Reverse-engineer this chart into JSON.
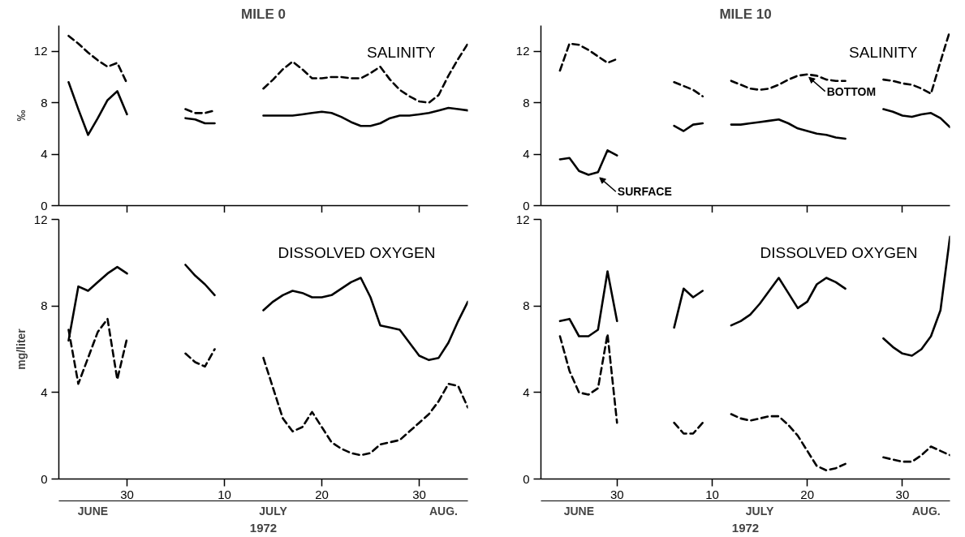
{
  "chart_data": [
    {
      "type": "line",
      "title": "MILE 0",
      "subtitle": "SALINITY",
      "ylabel": "‰",
      "xlim": [
        "1972-06-23",
        "1972-08-04"
      ],
      "ylim": [
        0,
        14
      ],
      "yticks": [
        0,
        4,
        8,
        12
      ],
      "xticks": [
        {
          "value": "1972-06-30",
          "label": null
        },
        {
          "value": "1972-07-10",
          "label": null
        },
        {
          "value": "1972-07-20",
          "label": null
        },
        {
          "value": "1972-07-30",
          "label": null
        }
      ],
      "tick_labels": "y",
      "grid": false,
      "x": [
        "1972-06-24",
        "1972-06-25",
        "1972-06-26",
        "1972-06-27",
        "1972-06-28",
        "1972-06-29",
        "1972-06-30",
        "1972-07-03",
        "1972-07-06",
        "1972-07-07",
        "1972-07-08",
        "1972-07-09",
        "1972-07-12",
        "1972-07-14",
        "1972-07-15",
        "1972-07-16",
        "1972-07-17",
        "1972-07-18",
        "1972-07-19",
        "1972-07-20",
        "1972-07-21",
        "1972-07-22",
        "1972-07-23",
        "1972-07-24",
        "1972-07-25",
        "1972-07-26",
        "1972-07-27",
        "1972-07-28",
        "1972-07-29",
        "1972-07-30",
        "1972-07-31",
        "1972-08-01",
        "1972-08-02",
        "1972-08-03",
        "1972-08-04"
      ],
      "series": [
        {
          "color": "#000000",
          "line_style": "dashed",
          "values": [
            13.2,
            12.6,
            11.9,
            11.3,
            10.8,
            11.1,
            9.5,
            null,
            7.5,
            7.2,
            7.2,
            7.4,
            null,
            9.1,
            9.8,
            10.6,
            11.2,
            10.6,
            9.9,
            9.9,
            10.0,
            10.0,
            9.9,
            9.9,
            10.3,
            10.8,
            9.8,
            9.0,
            8.5,
            8.1,
            8.0,
            8.6,
            10.1,
            11.4,
            12.6
          ]
        },
        {
          "color": "#000000",
          "line_style": "solid",
          "values": [
            9.6,
            7.5,
            5.5,
            6.8,
            8.2,
            8.9,
            7.1,
            null,
            6.8,
            6.7,
            6.4,
            6.4,
            null,
            7.0,
            7.0,
            7.0,
            7.0,
            7.1,
            7.2,
            7.3,
            7.2,
            6.9,
            6.5,
            6.2,
            6.2,
            6.4,
            6.8,
            7.0,
            7.0,
            7.1,
            7.2,
            7.4,
            7.6,
            7.5,
            7.4
          ]
        }
      ]
    },
    {
      "type": "line",
      "title": "MILE 10",
      "subtitle": "SALINITY",
      "xlim": [
        "1972-06-22",
        "1972-08-04"
      ],
      "ylim": [
        0,
        14
      ],
      "yticks": [
        0,
        4,
        8,
        12
      ],
      "xticks": [
        {
          "value": "1972-06-30",
          "label": null
        },
        {
          "value": "1972-07-10",
          "label": null
        },
        {
          "value": "1972-07-20",
          "label": null
        },
        {
          "value": "1972-07-30",
          "label": null
        }
      ],
      "tick_labels": "y",
      "grid": false,
      "annotations": [
        {
          "text": "BOTTOM",
          "x": "1972-07-20",
          "y": 10.2
        },
        {
          "text": "SURFACE",
          "x": "1972-06-28",
          "y": 2.4
        }
      ],
      "x": [
        "1972-06-24",
        "1972-06-25",
        "1972-06-26",
        "1972-06-27",
        "1972-06-28",
        "1972-06-29",
        "1972-06-30",
        "1972-07-03",
        "1972-07-06",
        "1972-07-07",
        "1972-07-08",
        "1972-07-09",
        "1972-07-11",
        "1972-07-12",
        "1972-07-13",
        "1972-07-14",
        "1972-07-15",
        "1972-07-16",
        "1972-07-17",
        "1972-07-18",
        "1972-07-19",
        "1972-07-20",
        "1972-07-21",
        "1972-07-22",
        "1972-07-23",
        "1972-07-24",
        "1972-07-26",
        "1972-07-28",
        "1972-07-29",
        "1972-07-30",
        "1972-07-31",
        "1972-08-01",
        "1972-08-02",
        "1972-08-03",
        "1972-08-04"
      ],
      "series": [
        {
          "color": "#000000",
          "line_style": "dashed",
          "values": [
            10.5,
            12.6,
            12.5,
            12.1,
            11.6,
            11.1,
            11.4,
            null,
            9.6,
            9.3,
            9.0,
            8.5,
            null,
            9.7,
            9.4,
            9.1,
            9.0,
            9.1,
            9.4,
            9.8,
            10.1,
            10.2,
            10.1,
            9.8,
            9.7,
            9.7,
            null,
            9.8,
            9.7,
            9.5,
            9.4,
            9.1,
            8.7,
            11.2,
            13.6
          ]
        },
        {
          "color": "#000000",
          "line_style": "solid",
          "values": [
            3.6,
            3.7,
            2.7,
            2.4,
            2.6,
            4.3,
            3.9,
            null,
            6.2,
            5.8,
            6.3,
            6.4,
            null,
            6.3,
            6.3,
            6.4,
            6.5,
            6.6,
            6.7,
            6.4,
            6.0,
            5.8,
            5.6,
            5.5,
            5.3,
            5.2,
            null,
            7.5,
            7.3,
            7.0,
            6.9,
            7.1,
            7.2,
            6.8,
            6.1
          ]
        }
      ]
    },
    {
      "type": "line",
      "subtitle": "DISSOLVED OXYGEN",
      "ylabel": "mg/liter",
      "xlabel": "1972",
      "xlim": [
        "1972-06-23",
        "1972-08-04"
      ],
      "ylim": [
        0,
        12
      ],
      "yticks": [
        0,
        4,
        8,
        12
      ],
      "xticks": [
        {
          "value": "1972-06-30",
          "label": "30"
        },
        {
          "value": "1972-07-10",
          "label": "10"
        },
        {
          "value": "1972-07-20",
          "label": "20"
        },
        {
          "value": "1972-07-30",
          "label": "30"
        }
      ],
      "grid": false,
      "annotations": [
        "JUNE",
        "JULY",
        "AUG."
      ],
      "x": [
        "1972-06-24",
        "1972-06-25",
        "1972-06-26",
        "1972-06-27",
        "1972-06-28",
        "1972-06-29",
        "1972-06-30",
        "1972-07-03",
        "1972-07-06",
        "1972-07-07",
        "1972-07-08",
        "1972-07-09",
        "1972-07-12",
        "1972-07-14",
        "1972-07-15",
        "1972-07-16",
        "1972-07-17",
        "1972-07-18",
        "1972-07-19",
        "1972-07-20",
        "1972-07-21",
        "1972-07-22",
        "1972-07-23",
        "1972-07-24",
        "1972-07-25",
        "1972-07-26",
        "1972-07-27",
        "1972-07-28",
        "1972-07-29",
        "1972-07-30",
        "1972-07-31",
        "1972-08-01",
        "1972-08-02",
        "1972-08-03",
        "1972-08-04"
      ],
      "series": [
        {
          "color": "#000000",
          "line_style": "solid",
          "values": [
            6.4,
            8.9,
            8.7,
            9.1,
            9.5,
            9.8,
            9.5,
            null,
            9.9,
            9.4,
            9.0,
            8.5,
            null,
            7.8,
            8.2,
            8.5,
            8.7,
            8.6,
            8.4,
            8.4,
            8.5,
            8.8,
            9.1,
            9.3,
            8.4,
            7.1,
            7.0,
            6.9,
            6.3,
            5.7,
            5.5,
            5.6,
            6.3,
            7.3,
            8.2
          ]
        },
        {
          "color": "#000000",
          "line_style": "dashed",
          "values": [
            6.9,
            4.4,
            5.6,
            6.8,
            7.4,
            4.6,
            6.5,
            null,
            5.8,
            5.4,
            5.2,
            6.0,
            null,
            5.6,
            4.2,
            2.8,
            2.2,
            2.4,
            3.1,
            2.4,
            1.7,
            1.4,
            1.2,
            1.1,
            1.2,
            1.6,
            1.7,
            1.8,
            2.2,
            2.6,
            3.0,
            3.6,
            4.4,
            4.3,
            3.3
          ]
        }
      ]
    },
    {
      "type": "line",
      "subtitle": "DISSOLVED OXYGEN",
      "xlabel": "1972",
      "xlim": [
        "1972-06-22",
        "1972-08-04"
      ],
      "ylim": [
        0,
        12
      ],
      "yticks": [
        0,
        4,
        8,
        12
      ],
      "xticks": [
        {
          "value": "1972-06-30",
          "label": "30"
        },
        {
          "value": "1972-07-10",
          "label": "10"
        },
        {
          "value": "1972-07-20",
          "label": "20"
        },
        {
          "value": "1972-07-30",
          "label": "30"
        }
      ],
      "grid": false,
      "annotations": [
        "JUNE",
        "JULY",
        "AUG."
      ],
      "x": [
        "1972-06-24",
        "1972-06-25",
        "1972-06-26",
        "1972-06-27",
        "1972-06-28",
        "1972-06-29",
        "1972-06-30",
        "1972-07-03",
        "1972-07-06",
        "1972-07-07",
        "1972-07-08",
        "1972-07-09",
        "1972-07-11",
        "1972-07-12",
        "1972-07-13",
        "1972-07-14",
        "1972-07-15",
        "1972-07-16",
        "1972-07-17",
        "1972-07-18",
        "1972-07-19",
        "1972-07-20",
        "1972-07-21",
        "1972-07-22",
        "1972-07-23",
        "1972-07-24",
        "1972-07-26",
        "1972-07-28",
        "1972-07-29",
        "1972-07-30",
        "1972-07-31",
        "1972-08-01",
        "1972-08-02",
        "1972-08-03",
        "1972-08-04"
      ],
      "series": [
        {
          "color": "#000000",
          "line_style": "solid",
          "values": [
            7.3,
            7.4,
            6.6,
            6.6,
            6.9,
            9.6,
            7.3,
            null,
            7.0,
            8.8,
            8.4,
            8.7,
            null,
            7.1,
            7.3,
            7.6,
            8.1,
            8.7,
            9.3,
            8.6,
            7.9,
            8.2,
            9.0,
            9.3,
            9.1,
            8.8,
            null,
            6.5,
            6.1,
            5.8,
            5.7,
            6.0,
            6.6,
            7.8,
            11.2
          ]
        },
        {
          "color": "#000000",
          "line_style": "dashed",
          "values": [
            6.6,
            5.0,
            4.0,
            3.9,
            4.2,
            6.7,
            2.6,
            null,
            2.6,
            2.1,
            2.1,
            2.6,
            null,
            3.0,
            2.8,
            2.7,
            2.8,
            2.9,
            2.9,
            2.5,
            2.0,
            1.3,
            0.6,
            0.4,
            0.5,
            0.7,
            null,
            1.0,
            0.9,
            0.8,
            0.8,
            1.1,
            1.5,
            1.3,
            1.1
          ]
        }
      ]
    }
  ]
}
